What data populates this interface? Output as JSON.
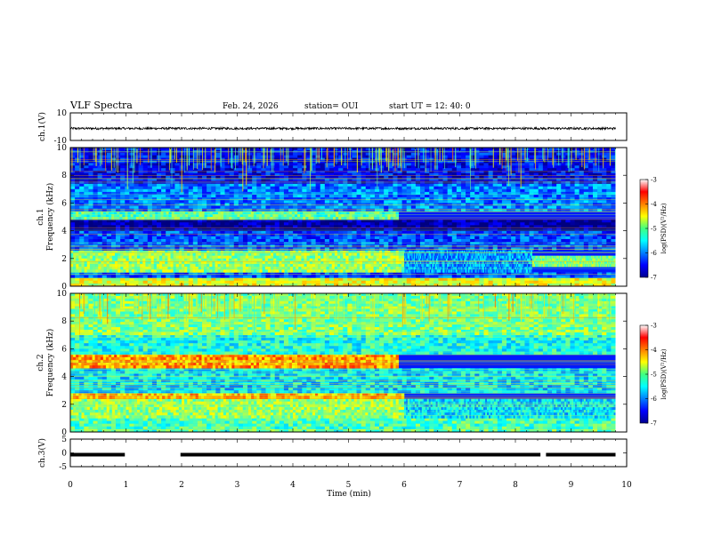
{
  "title": "VLF Spectra",
  "date": "Feb. 24, 2026",
  "station": "station= OUI",
  "start": "start  UT  =   12: 40: 0",
  "chart_data": [
    {
      "type": "line",
      "panel": "ch1-waveform",
      "ylabel": "ch.1(V)",
      "ylim": [
        -10,
        10
      ],
      "yticks": [
        "10",
        "-10"
      ],
      "xlim": [
        0,
        10
      ],
      "trace_level": 0,
      "trace_amplitude": 0.8,
      "trace_end": 9.8
    },
    {
      "type": "heatmap",
      "panel": "ch1-spectrogram",
      "ylabel": "ch.1\nFrequency (kHz)",
      "ylim": [
        0,
        10
      ],
      "yticks": [
        "0",
        "2",
        "4",
        "6",
        "8",
        "10"
      ],
      "colorbar_label": "log(PSD)(V²/Hz)",
      "colorbar_ticks": [
        "-3",
        "-4",
        "-5",
        "-6",
        "-7"
      ],
      "colorbar_range": [
        -7,
        -3
      ],
      "bands": [
        {
          "f0": 0.0,
          "f1": 0.6,
          "level": -4.6,
          "t_end": 9.8
        },
        {
          "f0": 0.6,
          "f1": 1.0,
          "level": -6.2,
          "t_end": 9.8
        },
        {
          "f0": 1.0,
          "f1": 2.6,
          "level": -4.9,
          "t_end": 6.0
        },
        {
          "f0": 1.0,
          "f1": 2.6,
          "level": -5.9,
          "t_start": 6.0,
          "t_end": 8.3
        },
        {
          "f0": 1.4,
          "f1": 2.2,
          "level": -5.0,
          "t_start": 8.3,
          "t_end": 9.8
        },
        {
          "f0": 2.6,
          "f1": 4.0,
          "level": -6.2,
          "t_end": 9.8
        },
        {
          "f0": 4.0,
          "f1": 4.8,
          "level": -6.9,
          "t_end": 9.8
        },
        {
          "f0": 4.8,
          "f1": 5.4,
          "level": -5.2,
          "t_end": 5.9
        },
        {
          "f0": 5.4,
          "f1": 7.4,
          "level": -6.0,
          "t_end": 9.8
        },
        {
          "f0": 7.4,
          "f1": 10.0,
          "level": -6.5,
          "t_end": 9.8
        }
      ]
    },
    {
      "type": "heatmap",
      "panel": "ch2-spectrogram",
      "ylabel": "ch.2\nFrequency (kHz)",
      "ylim": [
        0,
        10
      ],
      "yticks": [
        "0",
        "2",
        "4",
        "6",
        "8",
        "10"
      ],
      "colorbar_label": "log(PSD)(V²/Hz)",
      "colorbar_ticks": [
        "-3",
        "-4",
        "-5",
        "-6",
        "-7"
      ],
      "colorbar_range": [
        -7,
        -3
      ],
      "bands": [
        {
          "f0": 0.0,
          "f1": 1.0,
          "level": -5.2,
          "t_end": 9.8
        },
        {
          "f0": 1.0,
          "f1": 2.4,
          "level": -4.9,
          "t_end": 6.0
        },
        {
          "f0": 1.0,
          "f1": 2.4,
          "level": -5.6,
          "t_start": 6.0,
          "t_end": 9.8
        },
        {
          "f0": 2.4,
          "f1": 2.8,
          "level": -4.2,
          "t_end": 6.0
        },
        {
          "f0": 2.8,
          "f1": 4.6,
          "level": -5.6,
          "t_end": 9.8
        },
        {
          "f0": 4.6,
          "f1": 5.6,
          "level": -4.1,
          "t_end": 5.9
        },
        {
          "f0": 5.6,
          "f1": 7.0,
          "level": -5.4,
          "t_end": 9.8
        },
        {
          "f0": 7.0,
          "f1": 10.0,
          "level": -5.0,
          "t_end": 9.8
        }
      ]
    },
    {
      "type": "line",
      "panel": "ch3-waveform",
      "ylabel": "ch.3(V)",
      "ylim": [
        -5,
        5
      ],
      "yticks": [
        "5",
        "0",
        "-5"
      ],
      "xlim": [
        0,
        10
      ],
      "segments": [
        [
          0,
          0.98
        ],
        [
          1.98,
          8.45
        ],
        [
          8.55,
          9.8
        ]
      ],
      "trace_level": 0
    }
  ],
  "xaxis": {
    "label": "Time (min)",
    "ticks": [
      "0",
      "1",
      "2",
      "3",
      "4",
      "5",
      "6",
      "7",
      "8",
      "9",
      "10"
    ],
    "xlim": [
      0,
      10
    ]
  },
  "colors": {
    "background": "#ffffff",
    "axes": "#000000",
    "trace": "#000000"
  }
}
